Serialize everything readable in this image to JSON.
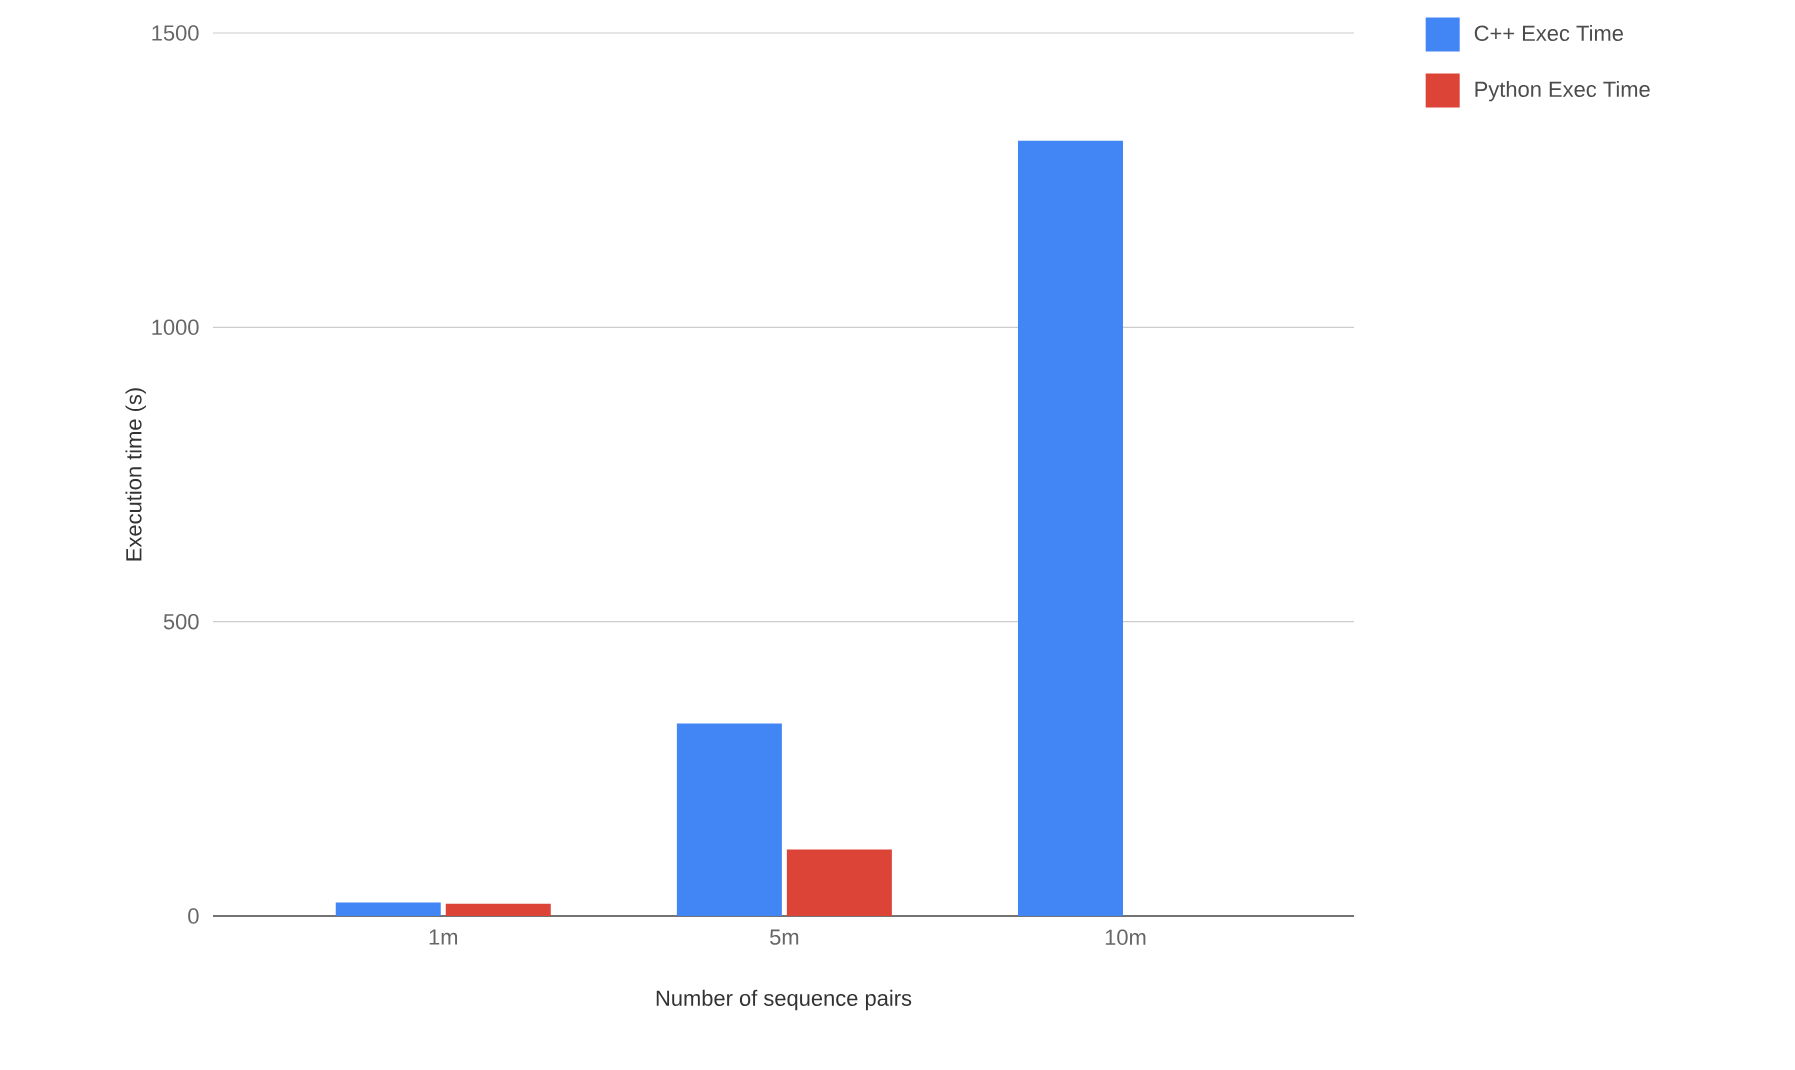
{
  "chart_data": {
    "type": "bar",
    "xlabel": "Number of sequence pairs",
    "ylabel": "Execution time (s)",
    "categories": [
      "1m",
      "5m",
      "10m"
    ],
    "series": [
      {
        "name": "C++ Exec Time",
        "color": "#4285f4",
        "values": [
          23,
          327,
          1317
        ]
      },
      {
        "name": "Python Exec Time",
        "color": "#db4437",
        "values": [
          21,
          113,
          null
        ]
      }
    ],
    "ylim": [
      0,
      1500
    ],
    "yticks": [
      0,
      500,
      1000,
      1500
    ],
    "grid": "y",
    "legend": "top right"
  }
}
